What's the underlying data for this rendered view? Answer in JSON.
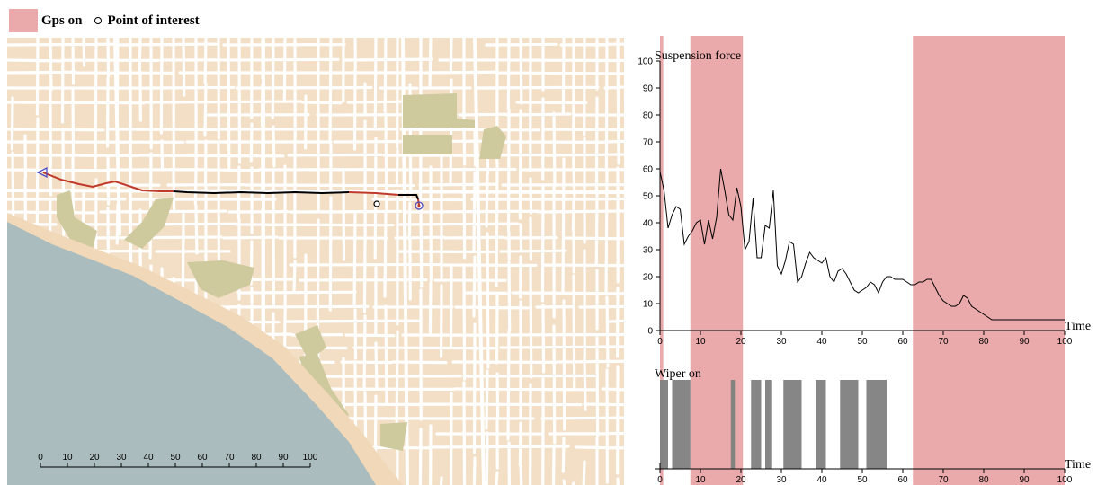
{
  "legend": {
    "gps_label": "Gps on",
    "poi_label": "Point of interest",
    "gps_color": "#eaa9aa"
  },
  "map": {
    "land_color": "#f2dfc5",
    "street_color": "#ffffff",
    "water_color": "#aabcbe",
    "park_color": "#cfc99e",
    "track_colors": [
      "#000000",
      "#c0392b"
    ],
    "scale_bar": {
      "ticks": [
        "0",
        "10",
        "20",
        "30",
        "40",
        "50",
        "60",
        "70",
        "80",
        "90",
        "100"
      ]
    }
  },
  "chart_data": [
    {
      "type": "line",
      "title": "Suspension force",
      "xlabel": "Time",
      "ylabel": "",
      "xlim": [
        0,
        100
      ],
      "ylim": [
        0,
        100
      ],
      "x_ticks": [
        "0",
        "10",
        "20",
        "30",
        "40",
        "50",
        "60",
        "70",
        "80",
        "90",
        "100"
      ],
      "y_ticks": [
        "0",
        "10",
        "20",
        "30",
        "40",
        "50",
        "60",
        "70",
        "80",
        "90",
        "100"
      ],
      "gps_on_intervals": [
        [
          0,
          0.8
        ],
        [
          7.5,
          20.5
        ],
        [
          62.5,
          100
        ]
      ],
      "series": [
        {
          "x": [
            0,
            1,
            2,
            3,
            4,
            5,
            6,
            7,
            8,
            9,
            10,
            11,
            12,
            13,
            14,
            15,
            16,
            17,
            18,
            19,
            20,
            21,
            22,
            23,
            24,
            25,
            26,
            27,
            28,
            29,
            30,
            31,
            32,
            33,
            34,
            35,
            36,
            37,
            38,
            39,
            40,
            41,
            42,
            43,
            44,
            45,
            46,
            47,
            48,
            49,
            50,
            51,
            52,
            53,
            54,
            55,
            56,
            57,
            58,
            59,
            60,
            61,
            62,
            63,
            64,
            65,
            66,
            67,
            68,
            69,
            70,
            71,
            72,
            73,
            74,
            75,
            76,
            77,
            78,
            79,
            80,
            81,
            82,
            83,
            84,
            85,
            86,
            87,
            88,
            89,
            90,
            91,
            92,
            93,
            94,
            95,
            96,
            97,
            98,
            99,
            100
          ],
          "y": [
            59,
            52,
            38,
            43,
            46,
            45,
            32,
            35,
            37,
            40,
            41,
            32,
            41,
            34,
            42,
            60,
            52,
            43,
            41,
            53,
            46,
            30,
            33,
            49,
            27,
            27,
            39,
            38,
            52,
            24,
            21,
            26,
            33,
            32,
            18,
            20,
            25,
            29,
            27,
            26,
            25,
            27,
            20,
            18,
            22,
            23,
            21,
            18,
            15,
            14,
            15,
            16,
            18,
            17,
            14,
            18,
            20,
            20,
            19,
            19,
            19,
            18,
            17,
            17,
            18,
            18,
            19,
            19,
            16,
            13,
            11,
            10,
            9,
            9,
            10,
            13,
            12,
            9,
            8,
            7,
            6,
            5,
            4,
            4,
            4,
            4,
            4,
            4,
            4,
            4,
            4,
            4,
            4,
            4,
            4,
            4,
            4,
            4,
            4,
            4,
            4
          ]
        }
      ]
    },
    {
      "type": "bar",
      "title": "Wiper on",
      "xlabel": "Time",
      "xlim": [
        0,
        100
      ],
      "x_ticks": [
        "0",
        "10",
        "20",
        "30",
        "40",
        "50",
        "60",
        "70",
        "80",
        "90",
        "100"
      ],
      "wiper_on_intervals": [
        [
          0,
          2
        ],
        [
          3,
          7.5
        ],
        [
          17.5,
          18.5
        ],
        [
          22.5,
          25
        ],
        [
          26,
          27.5
        ],
        [
          30.5,
          35
        ],
        [
          38.5,
          41
        ],
        [
          44.5,
          49
        ],
        [
          51,
          56
        ]
      ]
    }
  ]
}
